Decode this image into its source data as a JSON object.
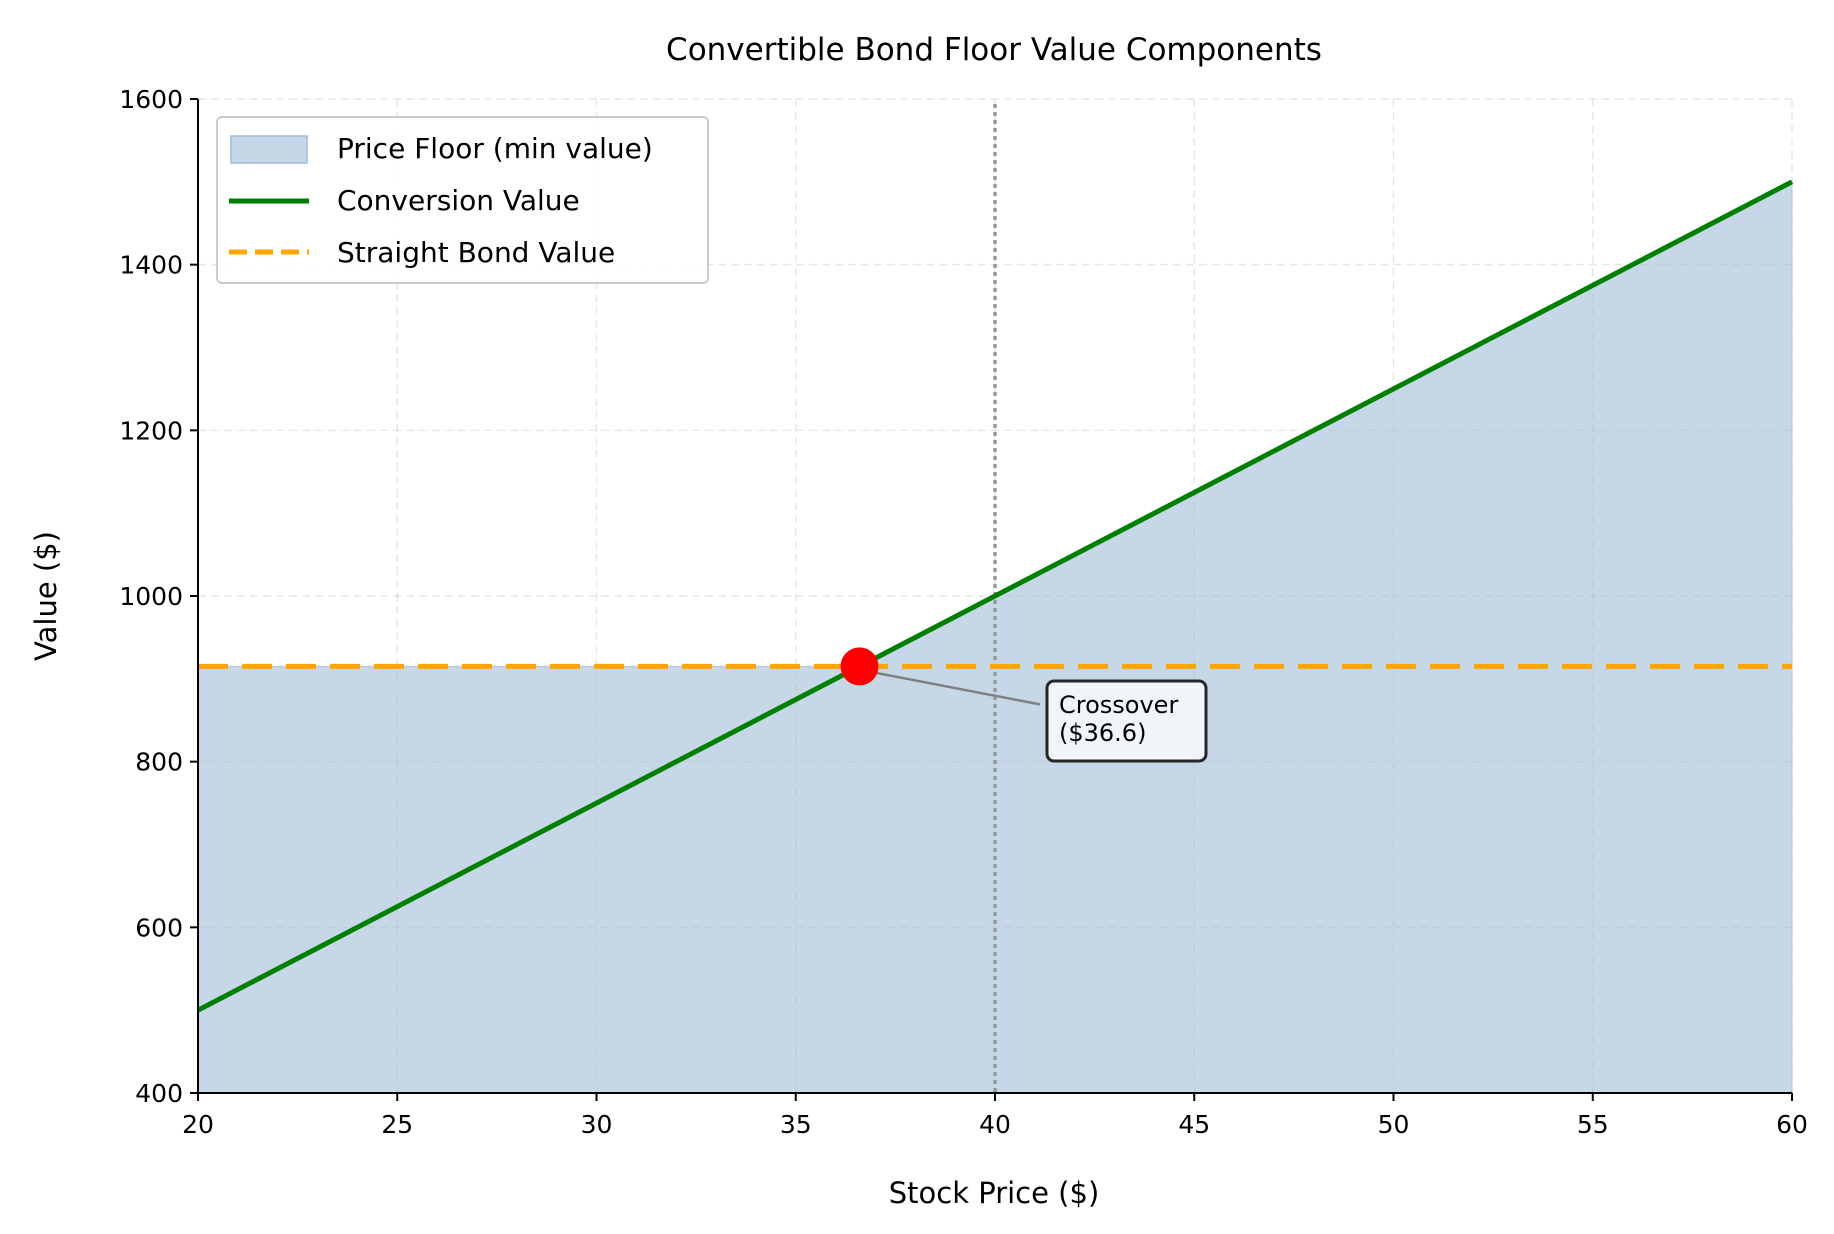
{
  "chart_data": {
    "type": "line",
    "title": "Convertible Bond Floor Value Components",
    "xlabel": "Stock Price ($)",
    "ylabel": "Value ($)",
    "xlim": [
      20,
      60
    ],
    "ylim": [
      400,
      1600
    ],
    "xticks": [
      "20",
      "25",
      "30",
      "35",
      "40",
      "45",
      "50",
      "55",
      "60"
    ],
    "yticks": [
      "400",
      "600",
      "800",
      "1000",
      "1200",
      "1400",
      "1600"
    ],
    "grid": true,
    "legend_position": "top-left",
    "series": [
      {
        "name": "Price Floor (min value)",
        "kind": "area",
        "color": "#c6d8e8",
        "x": [
          20,
          36.6,
          60
        ],
        "y": [
          915,
          915,
          1500
        ]
      },
      {
        "name": "Conversion Value",
        "kind": "line",
        "color": "#008000",
        "x": [
          20,
          60
        ],
        "y": [
          500,
          1500
        ]
      },
      {
        "name": "Straight Bond Value",
        "kind": "dashed-line",
        "color": "#ffa500",
        "x": [
          20,
          60
        ],
        "y": [
          915,
          915
        ]
      }
    ],
    "reference_line": {
      "x": 40,
      "style": "dotted",
      "color": "#999999"
    },
    "crossover": {
      "x": 36.6,
      "y": 915,
      "color": "#ff0000",
      "label": "Crossover\n($36.6)",
      "label_lines": [
        "Crossover",
        "($36.6)"
      ]
    }
  }
}
